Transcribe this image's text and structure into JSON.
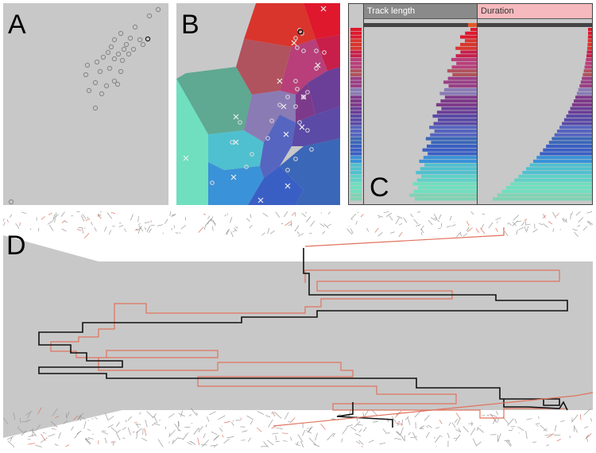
{
  "panels": {
    "a": {
      "letter": "A"
    },
    "b": {
      "letter": "B"
    },
    "c": {
      "letter": "C",
      "columns": [
        {
          "label": "Track length",
          "header_color": "#8a8a8a"
        },
        {
          "label": "Duration",
          "header_color": "#f6b9bd"
        }
      ]
    },
    "d": {
      "letter": "D"
    }
  },
  "colors": {
    "panel_background": "#c8c8c8",
    "trajectory_selected": "#111111",
    "trajectory_other": "#e0735e",
    "point_outline": "#888888"
  }
}
